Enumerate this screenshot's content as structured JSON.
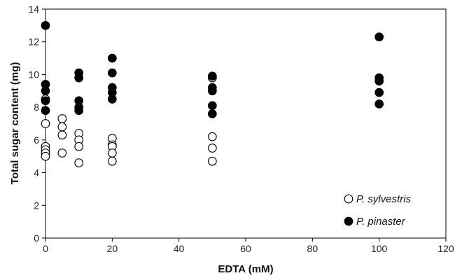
{
  "chart_data": {
    "type": "scatter",
    "xlabel": "EDTA (mM)",
    "ylabel": "Total sugar content (mg)",
    "xlim": [
      0,
      120
    ],
    "ylim": [
      0,
      14
    ],
    "x_ticks": [
      0,
      20,
      40,
      60,
      80,
      100,
      120
    ],
    "y_ticks": [
      0,
      2,
      4,
      6,
      8,
      10,
      12,
      14
    ],
    "grid": false,
    "legend_position": "bottom-right",
    "series": [
      {
        "name": "P. sylvestris",
        "marker": "open-circle",
        "color": "#000000",
        "points": [
          [
            0,
            8.5
          ],
          [
            0,
            7.0
          ],
          [
            0,
            5.6
          ],
          [
            0,
            5.4
          ],
          [
            0,
            5.2
          ],
          [
            0,
            5.0
          ],
          [
            5,
            7.3
          ],
          [
            5,
            6.8
          ],
          [
            5,
            6.3
          ],
          [
            5,
            5.2
          ],
          [
            10,
            6.4
          ],
          [
            10,
            6.0
          ],
          [
            10,
            5.6
          ],
          [
            10,
            4.6
          ],
          [
            20,
            6.1
          ],
          [
            20,
            5.7
          ],
          [
            20,
            5.6
          ],
          [
            20,
            5.2
          ],
          [
            20,
            4.7
          ],
          [
            50,
            9.8
          ],
          [
            50,
            6.2
          ],
          [
            50,
            5.5
          ],
          [
            50,
            4.7
          ]
        ]
      },
      {
        "name": "P. pinaster",
        "marker": "filled-circle",
        "color": "#000000",
        "points": [
          [
            0,
            13.0
          ],
          [
            0,
            9.4
          ],
          [
            0,
            9.0
          ],
          [
            0,
            8.4
          ],
          [
            0,
            7.8
          ],
          [
            10,
            10.1
          ],
          [
            10,
            9.8
          ],
          [
            10,
            8.4
          ],
          [
            10,
            8.0
          ],
          [
            10,
            7.8
          ],
          [
            20,
            11.0
          ],
          [
            20,
            10.1
          ],
          [
            20,
            9.2
          ],
          [
            20,
            8.9
          ],
          [
            20,
            8.5
          ],
          [
            50,
            9.9
          ],
          [
            50,
            9.2
          ],
          [
            50,
            9.0
          ],
          [
            50,
            8.1
          ],
          [
            50,
            7.6
          ],
          [
            100,
            12.3
          ],
          [
            100,
            9.8
          ],
          [
            100,
            9.6
          ],
          [
            100,
            8.9
          ],
          [
            100,
            8.2
          ]
        ]
      }
    ]
  }
}
